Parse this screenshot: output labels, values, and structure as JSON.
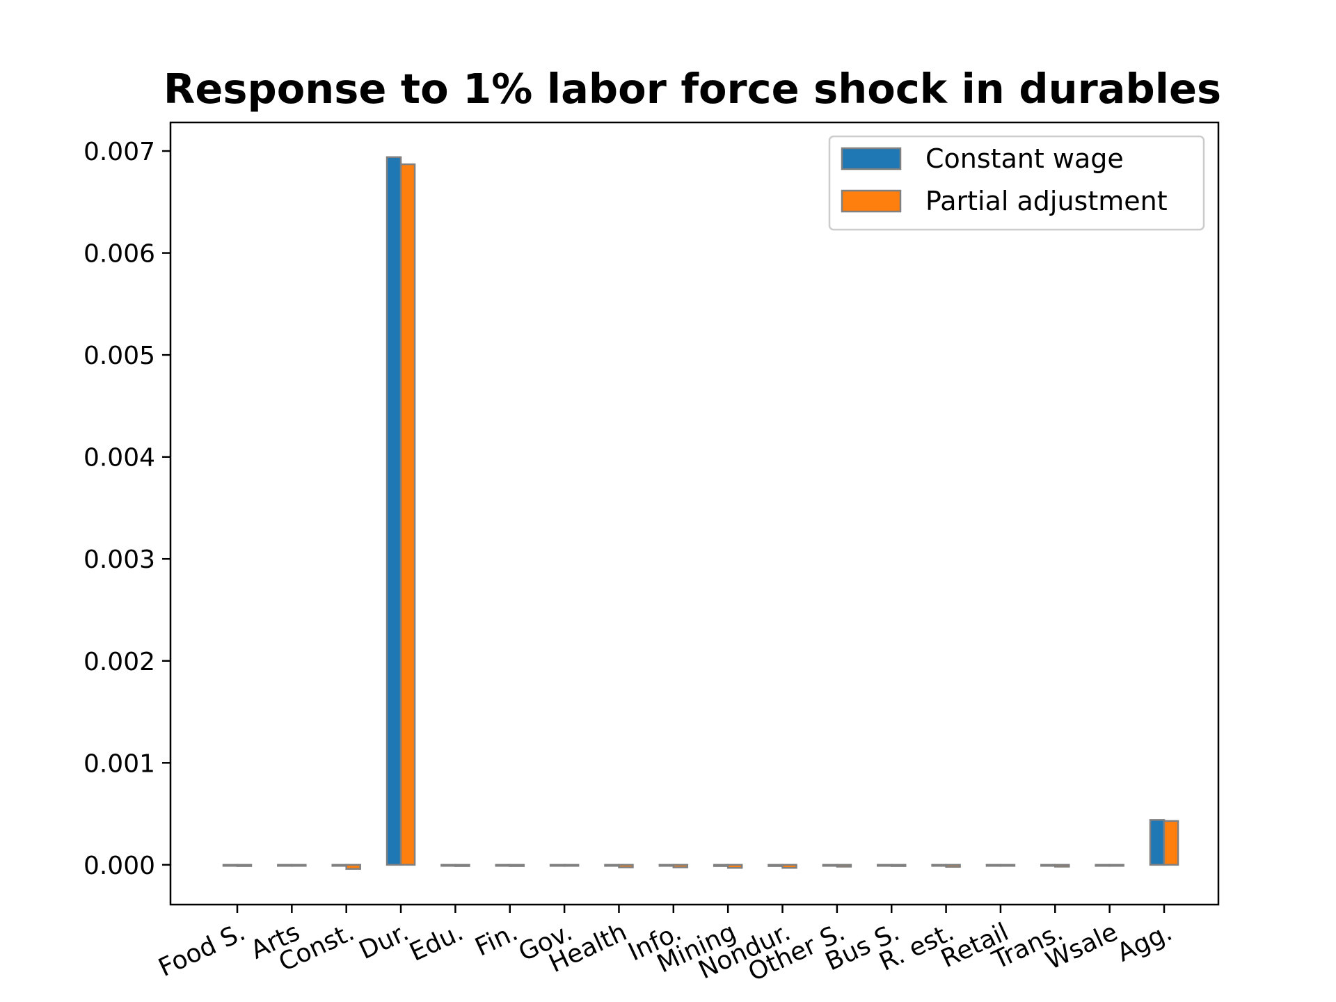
{
  "chart_data": {
    "type": "bar",
    "title": "Response to 1% labor force shock in durables",
    "xlabel": "",
    "ylabel": "",
    "categories": [
      "Food S.",
      "Arts",
      "Const.",
      "Dur.",
      "Edu.",
      "Fin.",
      "Gov.",
      "Health",
      "Info.",
      "Mining",
      "Nondur.",
      "Other S.",
      "Bus S.",
      "R. est.",
      "Retail",
      "Trans.",
      "Wsale",
      "Agg."
    ],
    "series": [
      {
        "name": "Constant wage",
        "color": "#1f77b4",
        "values": [
          -6e-06,
          -5e-06,
          -8e-06,
          0.00694,
          -6e-06,
          -5e-06,
          -5e-06,
          -8e-06,
          -8e-06,
          -1.2e-05,
          -1.2e-05,
          -8e-06,
          -6e-06,
          -8e-06,
          -5e-06,
          -6e-06,
          -5e-06,
          0.00044
        ]
      },
      {
        "name": "Partial adjustment",
        "color": "#ff7f0e",
        "values": [
          -1.2e-05,
          -1e-05,
          -4e-05,
          0.00687,
          -1.2e-05,
          -1.2e-05,
          -1e-05,
          -2.5e-05,
          -2.5e-05,
          -3e-05,
          -3e-05,
          -1.8e-05,
          -1.2e-05,
          -2e-05,
          -1e-05,
          -1.8e-05,
          -1e-05,
          0.00043
        ]
      }
    ],
    "ylim": [
      -0.00039,
      0.00728
    ],
    "yticks": [
      "0.000",
      "0.001",
      "0.002",
      "0.003",
      "0.004",
      "0.005",
      "0.006",
      "0.007"
    ],
    "ytick_values": [
      0,
      0.001,
      0.002,
      0.003,
      0.004,
      0.005,
      0.006,
      0.007
    ],
    "grid": false,
    "legend_position": "top-right",
    "bar_edge_color": "#808080"
  }
}
